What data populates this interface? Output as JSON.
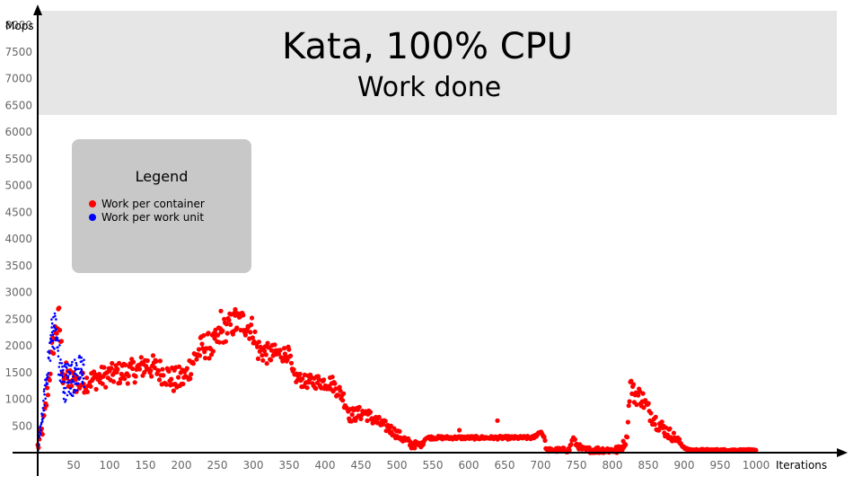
{
  "chart_data": {
    "type": "scatter",
    "title": "Kata, 100% CPU",
    "subtitle": "Work done",
    "xlabel": "Iterations",
    "ylabel": "Mops",
    "xlim": [
      0,
      1000
    ],
    "ylim": [
      0,
      8000
    ],
    "x_ticks": [
      50,
      100,
      150,
      200,
      250,
      300,
      350,
      400,
      450,
      500,
      550,
      600,
      650,
      700,
      750,
      800,
      850,
      900,
      950,
      1000
    ],
    "y_ticks": [
      500,
      1000,
      1500,
      2000,
      2500,
      3000,
      3500,
      4000,
      4500,
      5000,
      5500,
      6000,
      6500,
      7000,
      7500,
      8000
    ],
    "grid": false,
    "legend": {
      "title": "Legend",
      "placement": "top-left"
    },
    "series": [
      {
        "name": "Work per container",
        "color": "#ff0000",
        "trend": [
          [
            0,
            100
          ],
          [
            5,
            350
          ],
          [
            10,
            700
          ],
          [
            15,
            1300
          ],
          [
            20,
            1900
          ],
          [
            25,
            2300
          ],
          [
            30,
            2500
          ],
          [
            35,
            1500
          ],
          [
            45,
            1350
          ],
          [
            60,
            1300
          ],
          [
            80,
            1380
          ],
          [
            100,
            1450
          ],
          [
            120,
            1500
          ],
          [
            140,
            1550
          ],
          [
            150,
            1650
          ],
          [
            160,
            1600
          ],
          [
            175,
            1500
          ],
          [
            190,
            1350
          ],
          [
            205,
            1400
          ],
          [
            215,
            1700
          ],
          [
            230,
            2000
          ],
          [
            245,
            2000
          ],
          [
            260,
            2300
          ],
          [
            270,
            2400
          ],
          [
            285,
            2450
          ],
          [
            300,
            2300
          ],
          [
            305,
            1950
          ],
          [
            320,
            1850
          ],
          [
            340,
            1850
          ],
          [
            350,
            1850
          ],
          [
            355,
            1450
          ],
          [
            370,
            1330
          ],
          [
            390,
            1330
          ],
          [
            410,
            1300
          ],
          [
            425,
            1050
          ],
          [
            435,
            700
          ],
          [
            455,
            750
          ],
          [
            470,
            600
          ],
          [
            490,
            450
          ],
          [
            510,
            250
          ],
          [
            520,
            150
          ],
          [
            535,
            150
          ],
          [
            540,
            280
          ],
          [
            570,
            280
          ],
          [
            610,
            280
          ],
          [
            650,
            280
          ],
          [
            690,
            280
          ],
          [
            700,
            400
          ],
          [
            705,
            300
          ],
          [
            708,
            50
          ],
          [
            740,
            50
          ],
          [
            745,
            280
          ],
          [
            750,
            150
          ],
          [
            760,
            50
          ],
          [
            810,
            50
          ],
          [
            820,
            250
          ],
          [
            825,
            1300
          ],
          [
            830,
            1100
          ],
          [
            840,
            1050
          ],
          [
            850,
            800
          ],
          [
            860,
            600
          ],
          [
            875,
            400
          ],
          [
            890,
            250
          ],
          [
            900,
            100
          ],
          [
            905,
            50
          ],
          [
            1000,
            50
          ]
        ],
        "spread": [
          [
            0,
            150
          ],
          [
            30,
            300
          ],
          [
            60,
            200
          ],
          [
            200,
            250
          ],
          [
            300,
            250
          ],
          [
            355,
            120
          ],
          [
            420,
            150
          ],
          [
            520,
            80
          ],
          [
            540,
            30
          ],
          [
            700,
            30
          ],
          [
            820,
            80
          ],
          [
            830,
            200
          ],
          [
            880,
            120
          ],
          [
            900,
            20
          ],
          [
            1000,
            10
          ]
        ],
        "step": 1.1,
        "outliers": [
          [
            587,
            420
          ],
          [
            640,
            600
          ],
          [
            647,
            300
          ],
          [
            660,
            270
          ],
          [
            255,
            2650
          ],
          [
            275,
            2680
          ]
        ]
      },
      {
        "name": "Work per work unit",
        "color": "#0000ff",
        "trend": [
          [
            0,
            100
          ],
          [
            5,
            500
          ],
          [
            10,
            1100
          ],
          [
            15,
            1700
          ],
          [
            20,
            2300
          ],
          [
            25,
            2300
          ],
          [
            28,
            1900
          ],
          [
            32,
            1500
          ],
          [
            36,
            1300
          ],
          [
            40,
            1350
          ],
          [
            48,
            1400
          ],
          [
            55,
            1450
          ],
          [
            60,
            1550
          ],
          [
            65,
            1500
          ]
        ],
        "spread": [
          [
            0,
            100
          ],
          [
            20,
            350
          ],
          [
            30,
            400
          ],
          [
            65,
            300
          ]
        ],
        "step": 0.35,
        "outliers": []
      }
    ]
  }
}
